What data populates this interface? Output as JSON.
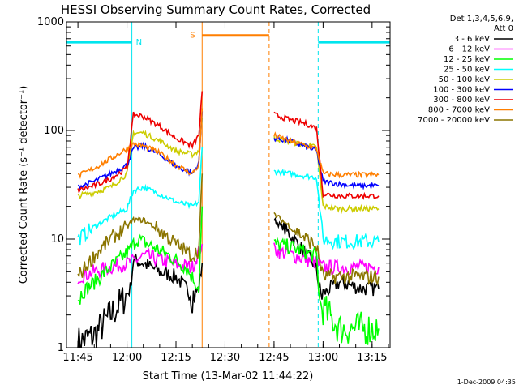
{
  "chart_data": {
    "type": "line",
    "title": "HESSI Observing Summary Count Rates, Corrected",
    "xlabel": "Start Time (13-Mar-02 11:44:22)",
    "ylabel": "Corrected Count Rate (s⁻¹ detector⁻¹)",
    "y_scale": "log",
    "ylim": [
      1,
      1000
    ],
    "xlim_minutes_after_1140": [
      1.5,
      100.5
    ],
    "x_tick_labels": [
      "11:45",
      "12:00",
      "12:15",
      "12:30",
      "12:45",
      "13:00",
      "13:15"
    ],
    "x_tick_minutes_after_1140": [
      5,
      20,
      35,
      50,
      65,
      80,
      95
    ],
    "y_tick_labels": [
      "1",
      "10",
      "100",
      "1000"
    ],
    "legend_header": [
      "Det 1,3,4,5,6,9,",
      "Att 0"
    ],
    "date_stamp": "1-Dec-2009 04:35",
    "gaps": [
      {
        "label": "N",
        "start_min": 21.5,
        "end_min": 78.5,
        "level": 650,
        "color": "#00e5ee"
      },
      {
        "label": "S",
        "start_min": 43.0,
        "end_min": 63.5,
        "level": 750,
        "color": "#ff7f00"
      }
    ],
    "series": [
      {
        "name": "3 - 6 keV",
        "color": "#000000",
        "points": [
          [
            5,
            1.1
          ],
          [
            10,
            1.3
          ],
          [
            15,
            2.0
          ],
          [
            19,
            2.8
          ],
          [
            21,
            3.5
          ],
          [
            22,
            6.5
          ],
          [
            25,
            6.0
          ],
          [
            30,
            5.0
          ],
          [
            35,
            4.5
          ],
          [
            40,
            3.0
          ],
          [
            42,
            3.5
          ],
          [
            43,
            6.0
          ],
          [
            65,
            15
          ],
          [
            70,
            11
          ],
          [
            75,
            7.0
          ],
          [
            78,
            5.5
          ],
          [
            79,
            3.0
          ],
          [
            85,
            4.0
          ],
          [
            92,
            3.5
          ],
          [
            97,
            3.5
          ]
        ]
      },
      {
        "name": "6 - 12 keV",
        "color": "#ff00ff",
        "points": [
          [
            5,
            4.5
          ],
          [
            10,
            5.0
          ],
          [
            15,
            5.5
          ],
          [
            20,
            6.0
          ],
          [
            22,
            6.2
          ],
          [
            25,
            7.0
          ],
          [
            30,
            6.5
          ],
          [
            35,
            5.8
          ],
          [
            40,
            5.5
          ],
          [
            43,
            9.0
          ],
          [
            65,
            8.0
          ],
          [
            70,
            7.2
          ],
          [
            75,
            6.5
          ],
          [
            78,
            6.0
          ],
          [
            80,
            5.5
          ],
          [
            85,
            5.5
          ],
          [
            90,
            5.5
          ],
          [
            97,
            5.5
          ]
        ]
      },
      {
        "name": "12 - 25 keV",
        "color": "#00ff00",
        "points": [
          [
            5,
            3.0
          ],
          [
            10,
            4.0
          ],
          [
            15,
            5.5
          ],
          [
            19,
            7.0
          ],
          [
            21,
            8.0
          ],
          [
            23,
            10
          ],
          [
            28,
            8.5
          ],
          [
            33,
            7.0
          ],
          [
            38,
            5.5
          ],
          [
            41,
            4.0
          ],
          [
            42,
            3.5
          ],
          [
            43,
            20
          ],
          [
            65,
            9.0
          ],
          [
            70,
            8.5
          ],
          [
            75,
            7.5
          ],
          [
            78,
            7.0
          ],
          [
            79,
            2.5
          ],
          [
            85,
            1.5
          ],
          [
            92,
            1.5
          ],
          [
            97,
            1.5
          ]
        ]
      },
      {
        "name": "25 - 50 keV",
        "color": "#00ffff",
        "points": [
          [
            5,
            10
          ],
          [
            10,
            13
          ],
          [
            15,
            16
          ],
          [
            20,
            19
          ],
          [
            22,
            28
          ],
          [
            25,
            30
          ],
          [
            30,
            26
          ],
          [
            35,
            22
          ],
          [
            40,
            20
          ],
          [
            42,
            22
          ],
          [
            43,
            70
          ],
          [
            65,
            42
          ],
          [
            70,
            40
          ],
          [
            75,
            38
          ],
          [
            78,
            37
          ],
          [
            80,
            10
          ],
          [
            85,
            9.5
          ],
          [
            90,
            9.5
          ],
          [
            97,
            9.5
          ]
        ]
      },
      {
        "name": "50 - 100 keV",
        "color": "#cccc00",
        "points": [
          [
            5,
            25
          ],
          [
            10,
            27
          ],
          [
            15,
            30
          ],
          [
            20,
            40
          ],
          [
            22,
            95
          ],
          [
            25,
            95
          ],
          [
            30,
            80
          ],
          [
            35,
            65
          ],
          [
            40,
            60
          ],
          [
            42,
            65
          ],
          [
            43,
            130
          ],
          [
            65,
            85
          ],
          [
            70,
            78
          ],
          [
            75,
            73
          ],
          [
            78,
            70
          ],
          [
            80,
            20
          ],
          [
            85,
            19
          ],
          [
            90,
            19
          ],
          [
            97,
            19
          ]
        ]
      },
      {
        "name": "100 - 300 keV",
        "color": "#0000ff",
        "points": [
          [
            5,
            30
          ],
          [
            10,
            34
          ],
          [
            15,
            40
          ],
          [
            20,
            48
          ],
          [
            22,
            68
          ],
          [
            25,
            72
          ],
          [
            30,
            60
          ],
          [
            35,
            47
          ],
          [
            40,
            40
          ],
          [
            42,
            50
          ],
          [
            43,
            150
          ],
          [
            65,
            85
          ],
          [
            70,
            80
          ],
          [
            75,
            70
          ],
          [
            78,
            65
          ],
          [
            80,
            34
          ],
          [
            85,
            32
          ],
          [
            90,
            31
          ],
          [
            97,
            31
          ]
        ]
      },
      {
        "name": "300 - 800 keV",
        "color": "#ee0000",
        "points": [
          [
            5,
            28
          ],
          [
            10,
            31
          ],
          [
            15,
            36
          ],
          [
            20,
            45
          ],
          [
            22,
            140
          ],
          [
            25,
            135
          ],
          [
            30,
            110
          ],
          [
            35,
            85
          ],
          [
            40,
            72
          ],
          [
            42,
            90
          ],
          [
            43,
            230
          ],
          [
            65,
            140
          ],
          [
            70,
            125
          ],
          [
            75,
            115
          ],
          [
            78,
            105
          ],
          [
            80,
            26
          ],
          [
            85,
            25
          ],
          [
            90,
            25
          ],
          [
            97,
            25
          ]
        ]
      },
      {
        "name": "800 - 7000 keV",
        "color": "#ff7f00",
        "points": [
          [
            5,
            38
          ],
          [
            10,
            45
          ],
          [
            15,
            55
          ],
          [
            20,
            68
          ],
          [
            22,
            75
          ],
          [
            25,
            72
          ],
          [
            30,
            62
          ],
          [
            35,
            48
          ],
          [
            40,
            40
          ],
          [
            42,
            48
          ],
          [
            43,
            160
          ],
          [
            65,
            90
          ],
          [
            70,
            80
          ],
          [
            75,
            72
          ],
          [
            78,
            68
          ],
          [
            80,
            40
          ],
          [
            85,
            39
          ],
          [
            90,
            39
          ],
          [
            97,
            39
          ]
        ]
      },
      {
        "name": "7000 - 20000 keV",
        "color": "#8b7500",
        "points": [
          [
            5,
            4.5
          ],
          [
            10,
            7.0
          ],
          [
            15,
            10
          ],
          [
            20,
            13
          ],
          [
            22,
            15
          ],
          [
            25,
            15
          ],
          [
            30,
            12
          ],
          [
            35,
            9.0
          ],
          [
            40,
            7.0
          ],
          [
            42,
            8.0
          ],
          [
            43,
            40
          ],
          [
            65,
            17
          ],
          [
            70,
            13
          ],
          [
            75,
            10
          ],
          [
            78,
            8.5
          ],
          [
            80,
            4.5
          ],
          [
            85,
            4.5
          ],
          [
            90,
            4.5
          ],
          [
            97,
            4.5
          ]
        ]
      }
    ]
  }
}
